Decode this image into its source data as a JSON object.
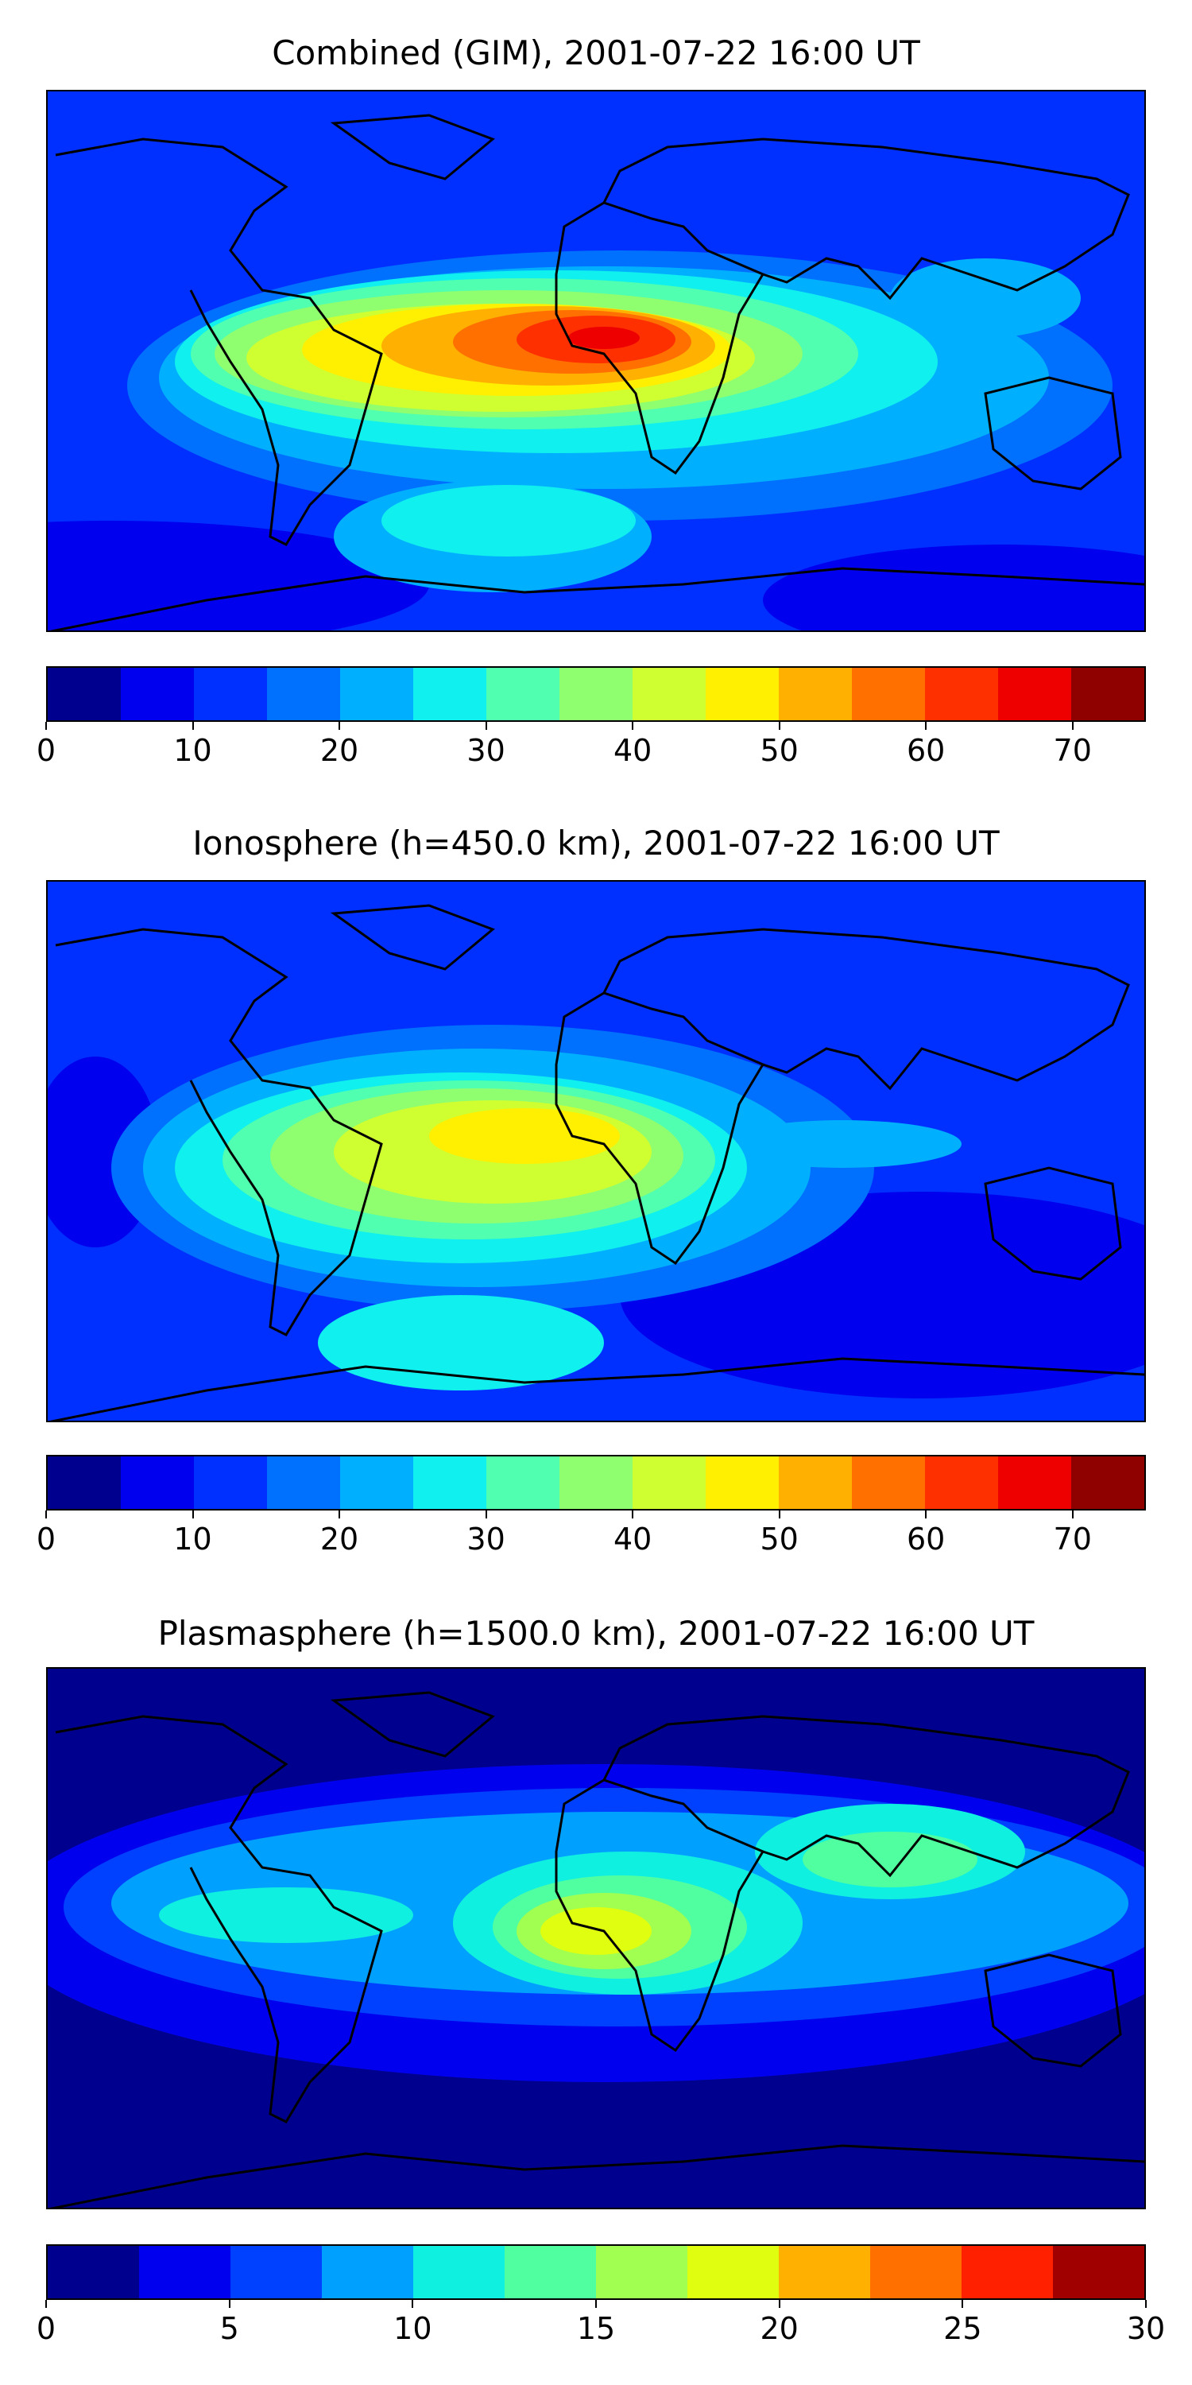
{
  "panels": [
    {
      "title": "Combined (GIM), 2001-07-22 16:00 UT",
      "colorbar": {
        "min": 0,
        "max": 75,
        "ticks": [
          "0",
          "10",
          "20",
          "30",
          "40",
          "50",
          "60",
          "70"
        ],
        "colors": [
          "#00008f",
          "#0000ef",
          "#0030ff",
          "#0070ff",
          "#00b0ff",
          "#10f0ee",
          "#50ffaf",
          "#8fff70",
          "#cfff30",
          "#ffef00",
          "#ffb000",
          "#ff7000",
          "#ff3000",
          "#ef0000",
          "#8f0000"
        ]
      }
    },
    {
      "title": "Ionosphere  (h=450.0 km), 2001-07-22 16:00 UT",
      "colorbar": {
        "min": 0,
        "max": 75,
        "ticks": [
          "0",
          "10",
          "20",
          "30",
          "40",
          "50",
          "60",
          "70"
        ],
        "colors": [
          "#00008f",
          "#0000ef",
          "#0030ff",
          "#0070ff",
          "#00b0ff",
          "#10f0ee",
          "#50ffaf",
          "#8fff70",
          "#cfff30",
          "#ffef00",
          "#ffb000",
          "#ff7000",
          "#ff3000",
          "#ef0000",
          "#8f0000"
        ]
      }
    },
    {
      "title": "Plasmasphere (h=1500.0 km), 2001-07-22 16:00 UT",
      "colorbar": {
        "min": 0,
        "max": 30,
        "ticks": [
          "0",
          "5",
          "10",
          "15",
          "20",
          "25",
          "30"
        ],
        "colors": [
          "#00008f",
          "#0000ef",
          "#0040ff",
          "#00a0ff",
          "#10f0e0",
          "#50ffa0",
          "#a0ff50",
          "#e0ff10",
          "#ffb000",
          "#ff7000",
          "#ff2000",
          "#a00000"
        ]
      }
    }
  ]
}
